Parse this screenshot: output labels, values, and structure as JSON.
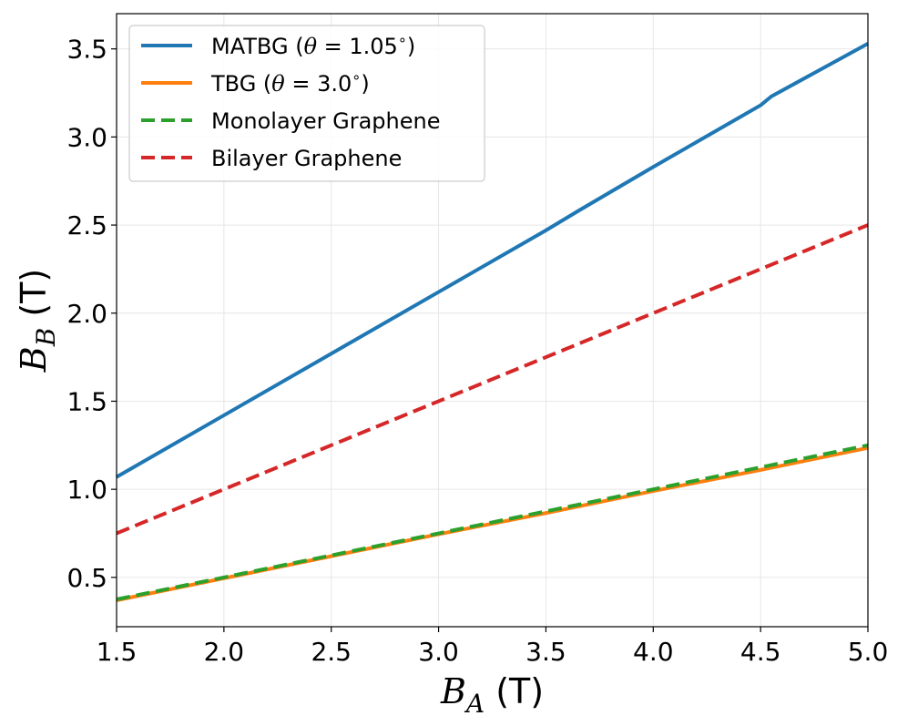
{
  "chart_data": {
    "type": "line",
    "xlabel_symbol": "B",
    "xlabel_sub": "A",
    "xlabel_unit": " (T)",
    "ylabel_symbol": "B",
    "ylabel_sub": "B",
    "ylabel_unit": " (T)",
    "xlim": [
      1.5,
      5.0
    ],
    "ylim": [
      0.22,
      3.7
    ],
    "xticks": [
      1.5,
      2.0,
      2.5,
      3.0,
      3.5,
      4.0,
      4.5,
      5.0
    ],
    "xtick_labels": [
      "1.5",
      "2.0",
      "2.5",
      "3.0",
      "3.5",
      "4.0",
      "4.5",
      "5.0"
    ],
    "yticks": [
      0.5,
      1.0,
      1.5,
      2.0,
      2.5,
      3.0,
      3.5
    ],
    "ytick_labels": [
      "0.5",
      "1.0",
      "1.5",
      "2.0",
      "2.5",
      "3.0",
      "3.5"
    ],
    "grid": true,
    "legend_position": "top-left",
    "series": [
      {
        "name": "MATBG (θ = 1.05°)",
        "color": "#1f77b4",
        "style": "solid",
        "x": [
          1.5,
          2.0,
          2.5,
          3.0,
          3.5,
          3.65,
          4.0,
          4.5,
          4.55,
          5.0
        ],
        "y": [
          1.07,
          1.42,
          1.77,
          2.12,
          2.47,
          2.58,
          2.83,
          3.18,
          3.23,
          3.53
        ]
      },
      {
        "name": "TBG (θ = 3.0°)",
        "color": "#ff7f0e",
        "style": "solid",
        "x": [
          1.5,
          2.0,
          2.5,
          3.0,
          3.5,
          4.0,
          4.5,
          5.0
        ],
        "y": [
          0.37,
          0.495,
          0.62,
          0.745,
          0.865,
          0.99,
          1.11,
          1.235
        ]
      },
      {
        "name": "Monolayer Graphene",
        "color": "#2ca02c",
        "style": "dashed",
        "x": [
          1.5,
          5.0
        ],
        "y": [
          0.375,
          1.25
        ]
      },
      {
        "name": "Bilayer Graphene",
        "color": "#d62728",
        "style": "dashed",
        "x": [
          1.5,
          5.0
        ],
        "y": [
          0.75,
          2.5
        ]
      }
    ],
    "legend": [
      {
        "label": "MATBG (θ = 1.05°)",
        "text_main": "MATBG (",
        "text_theta": "θ",
        "text_rest": " = 1.05",
        "text_deg": "∘",
        "text_close": ")"
      },
      {
        "label": "TBG (θ = 3.0°)",
        "text_main": "TBG (",
        "text_theta": "θ",
        "text_rest": " = 3.0",
        "text_deg": "∘",
        "text_close": ")"
      },
      {
        "label": "Monolayer Graphene",
        "text_main": "Monolayer Graphene"
      },
      {
        "label": "Bilayer Graphene",
        "text_main": "Bilayer Graphene"
      }
    ]
  }
}
